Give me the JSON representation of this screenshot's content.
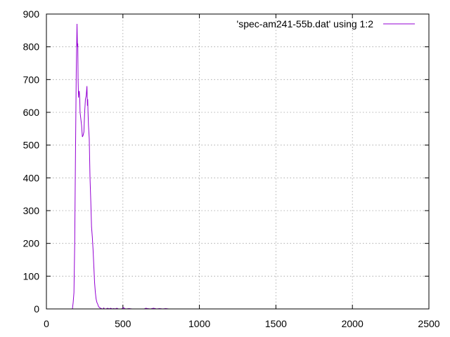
{
  "chart_data": {
    "type": "line",
    "title": "",
    "xlabel": "",
    "ylabel": "",
    "xlim": [
      0,
      2500
    ],
    "ylim": [
      0,
      900
    ],
    "xticks": [
      0,
      500,
      1000,
      1500,
      2000,
      2500
    ],
    "yticks": [
      0,
      100,
      200,
      300,
      400,
      500,
      600,
      700,
      800,
      900
    ],
    "grid": true,
    "legend_position": "top-right",
    "series": [
      {
        "name": "'spec-am241-55b.dat' using 1:2",
        "color": "#9400d3",
        "x": [
          0,
          170,
          175,
          180,
          185,
          190,
          195,
          200,
          203,
          205,
          207,
          210,
          212,
          215,
          218,
          220,
          225,
          230,
          235,
          240,
          245,
          250,
          255,
          260,
          265,
          268,
          270,
          272,
          275,
          280,
          285,
          290,
          295,
          300,
          305,
          310,
          315,
          320,
          325,
          330,
          335,
          340,
          345,
          350,
          355,
          360,
          365,
          370,
          375,
          380,
          390,
          400,
          410,
          420,
          430,
          440,
          450,
          460,
          470,
          480,
          490,
          500,
          505,
          510,
          520,
          540,
          560,
          580,
          600,
          620,
          640,
          650,
          660,
          680,
          700,
          720,
          740,
          760,
          780,
          800,
          900,
          1000,
          1500,
          2000,
          2400
        ],
        "y": [
          0,
          0,
          20,
          50,
          200,
          470,
          720,
          870,
          800,
          810,
          700,
          645,
          660,
          665,
          640,
          600,
          580,
          560,
          525,
          530,
          540,
          600,
          640,
          650,
          680,
          620,
          640,
          600,
          560,
          520,
          400,
          330,
          250,
          220,
          180,
          130,
          80,
          50,
          30,
          20,
          15,
          8,
          5,
          3,
          2,
          1,
          0,
          0,
          3,
          0,
          0,
          2,
          0,
          2,
          0,
          1,
          0,
          2,
          0,
          0,
          0,
          2,
          4,
          1,
          0,
          1,
          0,
          0,
          0,
          0,
          0,
          2,
          1,
          0,
          2,
          0,
          1,
          0,
          1,
          0,
          0,
          0,
          0,
          0,
          0
        ]
      }
    ]
  }
}
